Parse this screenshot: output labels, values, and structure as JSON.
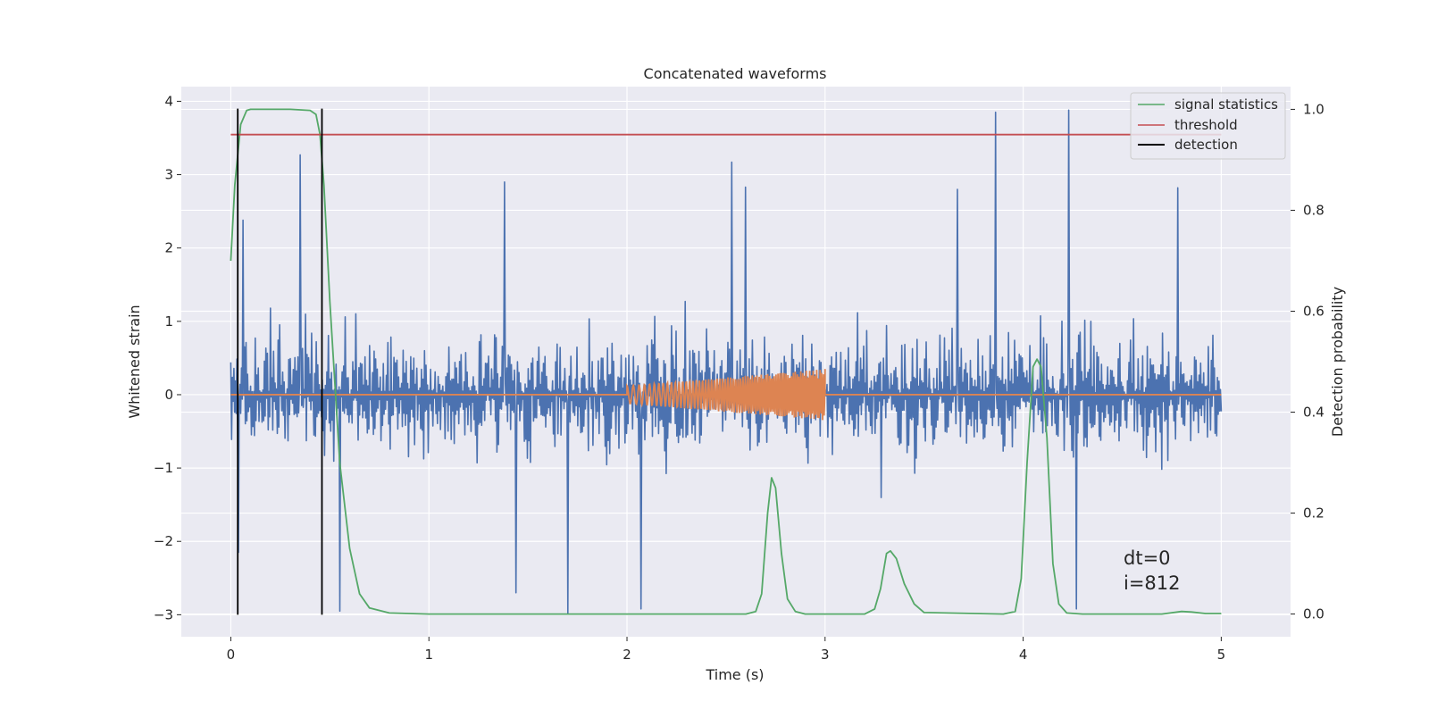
{
  "chart_data": {
    "type": "line",
    "title": "Concatenated waveforms",
    "xlabel": "Time (s)",
    "ylabel": "Whitened strain",
    "y2label": "Detection probability",
    "xlim": [
      -0.25,
      5.35
    ],
    "ylim": [
      -3.3,
      4.2
    ],
    "y2lim": [
      -0.045,
      1.045
    ],
    "xticks": [
      0,
      1,
      2,
      3,
      4,
      5
    ],
    "xtick_labels": [
      "0",
      "1",
      "2",
      "3",
      "4",
      "5"
    ],
    "yticks": [
      -3,
      -2,
      -1,
      0,
      1,
      2,
      3,
      4
    ],
    "ytick_labels": [
      "−3",
      "−2",
      "−1",
      "0",
      "1",
      "2",
      "3",
      "4"
    ],
    "y2ticks": [
      0.0,
      0.2,
      0.4,
      0.6,
      0.8,
      1.0
    ],
    "y2tick_labels": [
      "0.0",
      "0.2",
      "0.4",
      "0.6",
      "0.8",
      "1.0"
    ],
    "grid": true,
    "legend_position": "top-right",
    "legend": [
      "signal statistics",
      "threshold",
      "detection"
    ],
    "annotations": [
      "dt=0",
      "i=812"
    ],
    "colors": {
      "strain": "#4c72b0",
      "injected": "#dd8452",
      "signal_statistics": "#55a868",
      "threshold": "#c44e52",
      "detection": "#000000",
      "axes_bg": "#eaeaf2"
    },
    "series": [
      {
        "name": "signal statistics",
        "axis": "right",
        "x": [
          0.0,
          0.02,
          0.05,
          0.08,
          0.1,
          0.2,
          0.3,
          0.4,
          0.43,
          0.45,
          0.47,
          0.5,
          0.55,
          0.6,
          0.65,
          0.7,
          0.8,
          1.0,
          2.0,
          2.6,
          2.65,
          2.68,
          2.71,
          2.73,
          2.75,
          2.78,
          2.81,
          2.85,
          2.9,
          3.2,
          3.25,
          3.28,
          3.31,
          3.33,
          3.36,
          3.4,
          3.45,
          3.5,
          3.9,
          3.96,
          3.99,
          4.02,
          4.05,
          4.07,
          4.09,
          4.12,
          4.15,
          4.18,
          4.22,
          4.3,
          4.7,
          4.8,
          4.85,
          4.92,
          5.0
        ],
        "y": [
          0.7,
          0.85,
          0.97,
          0.998,
          1.0,
          1.0,
          1.0,
          0.998,
          0.99,
          0.95,
          0.85,
          0.62,
          0.3,
          0.13,
          0.04,
          0.012,
          0.002,
          0.0,
          0.0,
          0.0,
          0.005,
          0.04,
          0.2,
          0.27,
          0.25,
          0.12,
          0.03,
          0.005,
          0.0,
          0.0,
          0.01,
          0.05,
          0.12,
          0.125,
          0.11,
          0.06,
          0.02,
          0.003,
          0.0,
          0.005,
          0.07,
          0.3,
          0.49,
          0.505,
          0.49,
          0.35,
          0.1,
          0.02,
          0.002,
          0.0,
          0.0,
          0.005,
          0.004,
          0.001,
          0.001
        ]
      },
      {
        "name": "threshold",
        "axis": "right",
        "x": [
          0.0,
          5.0
        ],
        "y": [
          0.95,
          0.95
        ]
      },
      {
        "name": "detection",
        "axis": "left",
        "x": [
          0.035,
          0.46
        ],
        "y_from": -3.0,
        "y_to": 3.9
      }
    ],
    "strain_spikes": [
      {
        "x": 0.35,
        "y": 3.27
      },
      {
        "x": 2.53,
        "y": 3.17
      },
      {
        "x": 3.86,
        "y": 3.85
      },
      {
        "x": 4.23,
        "y": 3.88
      },
      {
        "x": 0.06,
        "y": 2.38
      },
      {
        "x": 1.38,
        "y": 2.9
      },
      {
        "x": 2.6,
        "y": 2.83
      },
      {
        "x": 3.67,
        "y": 2.8
      },
      {
        "x": 4.78,
        "y": 2.82
      },
      {
        "x": 0.55,
        "y": -2.95
      },
      {
        "x": 1.7,
        "y": -2.98
      },
      {
        "x": 2.07,
        "y": -2.92
      },
      {
        "x": 4.27,
        "y": -2.92
      },
      {
        "x": 0.04,
        "y": -2.15
      },
      {
        "x": 1.44,
        "y": -2.7
      }
    ],
    "injected_chirp": {
      "x_start": 2.0,
      "x_end": 3.0,
      "amp_start": 0.12,
      "amp_end": 0.35
    }
  }
}
